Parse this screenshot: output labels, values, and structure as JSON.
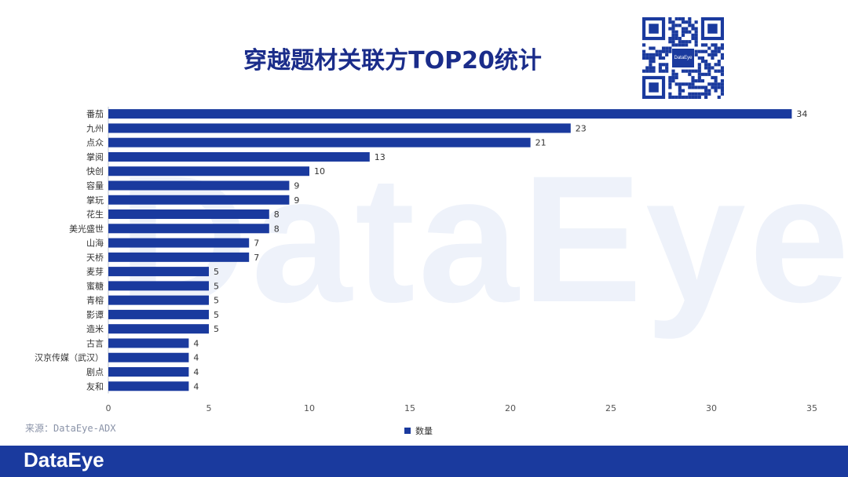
{
  "title": "穿越题材关联方TOP20统计",
  "source": "来源：DataEye-ADX",
  "watermark": "DataEye",
  "qr_logo_text": "DataEye",
  "footer_logo": "DataEye",
  "colors": {
    "bar": "#1a3a9e",
    "title": "#1a2c8a",
    "footer": "#1a3a9e"
  },
  "chart_data": {
    "type": "bar",
    "orientation": "horizontal",
    "categories": [
      "番茄",
      "九州",
      "点众",
      "掌阅",
      "快创",
      "容量",
      "掌玩",
      "花生",
      "美光盛世",
      "山海",
      "天桥",
      "麦芽",
      "蜜糖",
      "青榕",
      "影谭",
      "造米",
      "古言",
      "汉京传媒（武汉）",
      "剧点",
      "友和"
    ],
    "series": [
      {
        "name": "数量",
        "values": [
          34,
          23,
          21,
          13,
          10,
          9,
          9,
          8,
          8,
          7,
          7,
          5,
          5,
          5,
          5,
          5,
          4,
          4,
          4,
          4
        ]
      }
    ],
    "xlim": [
      0,
      35
    ],
    "xticks": [
      0,
      5,
      10,
      15,
      20,
      25,
      30,
      35
    ],
    "legend": "bottom-center",
    "grid": false
  }
}
